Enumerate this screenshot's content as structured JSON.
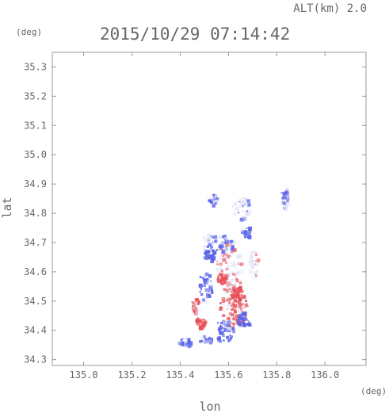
{
  "header": {
    "altitude_label": "ALT(km) 2.0",
    "timestamp": "2015/10/29 07:14:42",
    "y_unit": "(deg)",
    "x_unit": "(deg)"
  },
  "chart_data": {
    "type": "heatmap",
    "xlabel": "lon",
    "ylabel": "lat",
    "xlim": [
      134.87,
      136.17
    ],
    "ylim": [
      34.28,
      35.35
    ],
    "x_ticks": [
      135.0,
      135.2,
      135.4,
      135.6,
      135.8,
      136.0
    ],
    "x_tick_labels": [
      "135.0",
      "135.2",
      "135.4",
      "135.6",
      "135.8",
      "136.0"
    ],
    "y_ticks": [
      34.3,
      34.4,
      34.5,
      34.6,
      34.7,
      34.8,
      34.9,
      35.0,
      35.1,
      35.2,
      35.3
    ],
    "y_tick_labels": [
      "34.3",
      "34.4",
      "34.5",
      "34.6",
      "34.7",
      "34.8",
      "34.9",
      "35.0",
      "35.1",
      "35.2",
      "35.3"
    ],
    "colors": {
      "positive": "#e8505a",
      "negative": "#5a64e6",
      "neutral": "#dde0f5"
    },
    "echo_patches": [
      {
        "lon": 135.6,
        "lat": 34.62,
        "rlon": 0.055,
        "rlat": 0.09,
        "v": 0.2
      },
      {
        "lon": 135.62,
        "lat": 34.48,
        "rlon": 0.06,
        "rlat": 0.07,
        "v": 0.5
      },
      {
        "lon": 135.55,
        "lat": 34.7,
        "rlon": 0.07,
        "rlat": 0.04,
        "v": -0.4
      },
      {
        "lon": 135.5,
        "lat": 34.55,
        "rlon": 0.03,
        "rlat": 0.05,
        "v": -0.6
      },
      {
        "lon": 135.58,
        "lat": 34.4,
        "rlon": 0.04,
        "rlat": 0.04,
        "v": -0.7
      },
      {
        "lon": 135.63,
        "lat": 34.53,
        "rlon": 0.025,
        "rlat": 0.025,
        "v": 0.8
      },
      {
        "lon": 135.57,
        "lat": 34.58,
        "rlon": 0.02,
        "rlat": 0.02,
        "v": 0.9
      },
      {
        "lon": 135.48,
        "lat": 34.43,
        "rlon": 0.02,
        "rlat": 0.02,
        "v": 0.7
      },
      {
        "lon": 135.52,
        "lat": 34.66,
        "rlon": 0.025,
        "rlat": 0.02,
        "v": -0.8
      },
      {
        "lon": 135.66,
        "lat": 34.44,
        "rlon": 0.03,
        "rlat": 0.025,
        "v": -0.9
      },
      {
        "lon": 135.42,
        "lat": 34.36,
        "rlon": 0.03,
        "rlat": 0.015,
        "v": -0.5
      },
      {
        "lon": 135.5,
        "lat": 34.37,
        "rlon": 0.025,
        "rlat": 0.015,
        "v": -0.6
      },
      {
        "lon": 135.65,
        "lat": 34.82,
        "rlon": 0.04,
        "rlat": 0.04,
        "v": -0.3
      },
      {
        "lon": 135.53,
        "lat": 34.85,
        "rlon": 0.02,
        "rlat": 0.02,
        "v": -0.5
      },
      {
        "lon": 135.83,
        "lat": 34.86,
        "rlon": 0.015,
        "rlat": 0.04,
        "v": -0.4
      },
      {
        "lon": 135.7,
        "lat": 34.63,
        "rlon": 0.02,
        "rlat": 0.05,
        "v": 0.1
      },
      {
        "lon": 135.46,
        "lat": 34.49,
        "rlon": 0.015,
        "rlat": 0.03,
        "v": 0.6
      },
      {
        "lon": 135.67,
        "lat": 34.74,
        "rlon": 0.02,
        "rlat": 0.02,
        "v": -0.7
      }
    ]
  }
}
